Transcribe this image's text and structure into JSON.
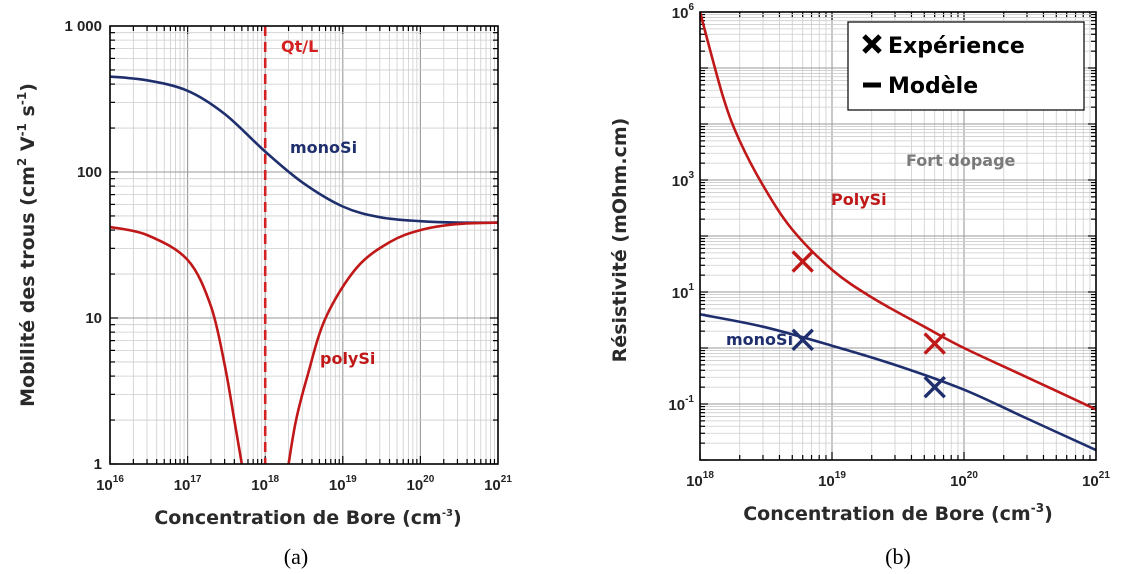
{
  "chart_data": [
    {
      "type": "line",
      "panel_label": "(a)",
      "xlabel": "Concentration de Bore (cm-3)",
      "xlabel_main": "Concentration de Bore (cm",
      "xlabel_sup": "-3",
      "xlabel_end": ")",
      "ylabel": "Mobilité des trous (cm² V-1 s-1)",
      "ylabel_parts": [
        "Mobilité des trous (cm",
        "2",
        " V",
        "-1",
        " s",
        "-1",
        ")"
      ],
      "x_scale": "log",
      "y_scale": "log",
      "xlim": [
        1e+16,
        1e+21
      ],
      "ylim": [
        1,
        1000
      ],
      "grid": true,
      "x_ticks": [
        {
          "base": "10",
          "exp": "16"
        },
        {
          "base": "10",
          "exp": "17"
        },
        {
          "base": "10",
          "exp": "18"
        },
        {
          "base": "10",
          "exp": "19"
        },
        {
          "base": "10",
          "exp": "20"
        },
        {
          "base": "10",
          "exp": "21"
        }
      ],
      "y_ticks": [
        "1",
        "10",
        "100",
        "1 000"
      ],
      "vline": {
        "x": 1e+18,
        "label": "Qt/L",
        "color": "#d42020"
      },
      "series": [
        {
          "name": "monoSi",
          "color": "#1f2f6e",
          "points": [
            [
              1e+16,
              450
            ],
            [
              3e+16,
              425
            ],
            [
              1e+17,
              360
            ],
            [
              3e+17,
              250
            ],
            [
              1e+18,
              138
            ],
            [
              3e+18,
              85
            ],
            [
              1e+19,
              58
            ],
            [
              3e+19,
              49
            ],
            [
              1e+20,
              46
            ],
            [
              3e+20,
              45
            ],
            [
              1e+21,
              45
            ]
          ]
        },
        {
          "name": "polySi",
          "color": "#c01818",
          "points": [
            [
              1e+16,
              42
            ],
            [
              3e+16,
              37
            ],
            [
              1e+17,
              25
            ],
            [
              2e+17,
              12
            ],
            [
              3e+17,
              4.8
            ],
            [
              4e+17,
              2
            ],
            [
              5e+17,
              1
            ]
          ],
          "points_right": [
            [
              2e+18,
              1
            ],
            [
              2.5e+18,
              2
            ],
            [
              3.5e+18,
              4
            ],
            [
              6e+18,
              10
            ],
            [
              1.5e+19,
              22
            ],
            [
              4e+19,
              33
            ],
            [
              1e+20,
              40
            ],
            [
              3e+20,
              44
            ],
            [
              1e+21,
              45
            ]
          ]
        }
      ]
    },
    {
      "type": "line",
      "panel_label": "(b)",
      "xlabel": "Concentration de Bore (cm-3)",
      "xlabel_main": "Concentration de Bore (cm",
      "xlabel_sup": "-3",
      "xlabel_end": ")",
      "ylabel": "Résistivité (mOhm.cm)",
      "x_scale": "log",
      "y_scale": "log",
      "xlim": [
        1e+18,
        1e+21
      ],
      "ylim": [
        0.01,
        1000000
      ],
      "grid": true,
      "x_ticks": [
        {
          "base": "10",
          "exp": "18"
        },
        {
          "base": "10",
          "exp": "19"
        },
        {
          "base": "10",
          "exp": "20"
        },
        {
          "base": "10",
          "exp": "21"
        }
      ],
      "y_ticks": [
        {
          "base": "10",
          "exp": "-1"
        },
        {
          "base": "10",
          "exp": "1"
        },
        {
          "base": "10",
          "exp": "3"
        },
        {
          "base": "10",
          "exp": "6"
        }
      ],
      "annotation": "Fort dopage",
      "legend": {
        "placement": "top-right",
        "entries": [
          {
            "marker": "cross",
            "label": "Expérience"
          },
          {
            "marker": "line",
            "label": "Modèle"
          }
        ]
      },
      "series": [
        {
          "name": "PolySi",
          "color": "#c01818",
          "model": [
            [
              1e+18,
              1000000
            ],
            [
              1.5e+18,
              30000
            ],
            [
              2e+18,
              5000
            ],
            [
              3e+18,
              800
            ],
            [
              5e+18,
              130
            ],
            [
              1e+19,
              25
            ],
            [
              2e+19,
              8
            ],
            [
              5e+19,
              2.4
            ],
            [
              1e+20,
              1.0
            ],
            [
              3e+20,
              0.3
            ],
            [
              1e+21,
              0.08
            ]
          ],
          "experience": [
            [
              6e+18,
              35
            ],
            [
              6e+19,
              1.2
            ]
          ]
        },
        {
          "name": "monoSi",
          "color": "#1f2f6e",
          "model": [
            [
              1e+18,
              4
            ],
            [
              3e+18,
              2.4
            ],
            [
              1e+19,
              1.1
            ],
            [
              3e+19,
              0.5
            ],
            [
              1e+20,
              0.18
            ],
            [
              3e+20,
              0.055
            ],
            [
              1e+21,
              0.015
            ]
          ],
          "experience": [
            [
              6e+18,
              1.4
            ],
            [
              6e+19,
              0.2
            ]
          ]
        }
      ]
    }
  ]
}
